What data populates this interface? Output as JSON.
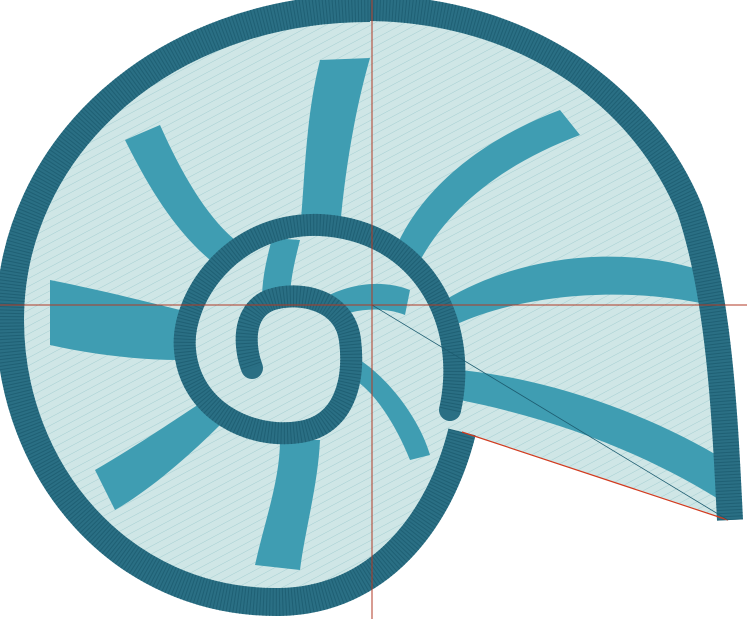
{
  "design": {
    "subject": "nautilus-shell-embroidery",
    "colors": {
      "fill": "#cfe6e6",
      "fill_stitch": "#9cc8cb",
      "satin_dark": "#2a6f84",
      "satin_light": "#3f9db2",
      "stitch_line": "#1d5c70",
      "outline_red": "#d23a1e",
      "guide_line": "#b03a25",
      "background": "#ffffff"
    },
    "guides": {
      "crosshair": true,
      "vertical": "center",
      "horizontal": "center"
    }
  }
}
